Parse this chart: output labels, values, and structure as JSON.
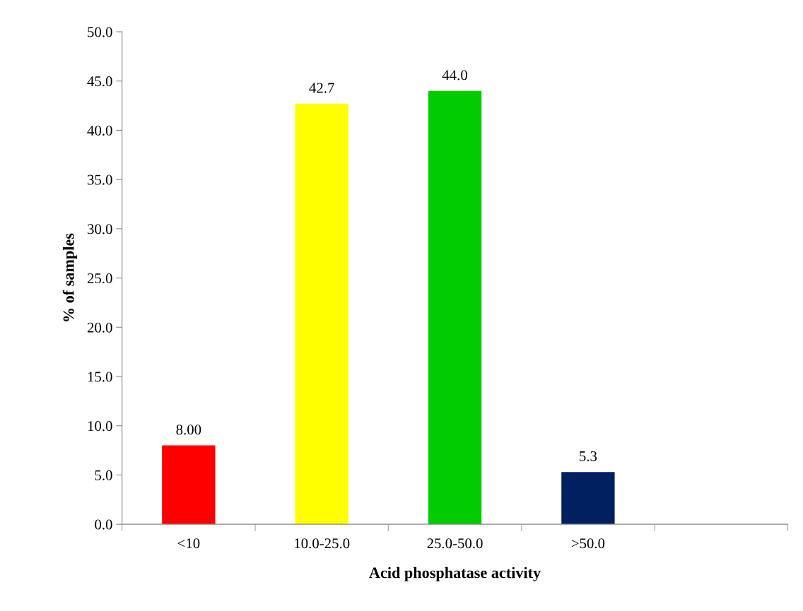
{
  "chart_data": {
    "type": "bar",
    "xlabel": "Acid phosphatase activity",
    "ylabel": "% of samples",
    "categories": [
      "<10",
      "10.0-25.0",
      "25.0-50.0",
      ">50.0",
      null
    ],
    "values": [
      8.0,
      42.7,
      44.0,
      5.3,
      null
    ],
    "colors": [
      "#ff0000",
      "#ffff00",
      "#00cc00",
      "#002060",
      "#000000"
    ],
    "value_labels": [
      "8.00",
      "42.7",
      "44.0",
      "5.3",
      null
    ],
    "ylim": [
      0,
      50
    ],
    "yticks": [
      {
        "value": 0,
        "label": "0.0"
      },
      {
        "value": 5,
        "label": "5.0"
      },
      {
        "value": 10,
        "label": "10.0"
      },
      {
        "value": 15,
        "label": "15.0"
      },
      {
        "value": 20,
        "label": "20.0"
      },
      {
        "value": 25,
        "label": "25.0"
      },
      {
        "value": 30,
        "label": "30.0"
      },
      {
        "value": 35,
        "label": "35.0"
      },
      {
        "value": 40,
        "label": "40.0"
      },
      {
        "value": 45,
        "label": "45.0"
      },
      {
        "value": 50,
        "label": "50.0"
      }
    ],
    "grid": false,
    "legend": false
  }
}
